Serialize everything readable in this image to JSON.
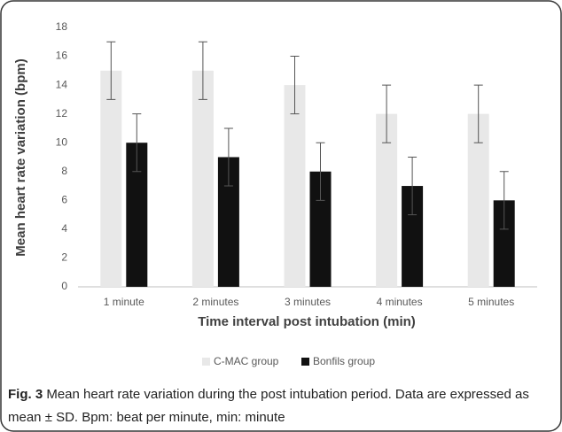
{
  "chart_data": {
    "type": "bar",
    "y_label": "Mean heart rate  variation (bpm)",
    "x_label": "Time interval post intubation (min)",
    "categories": [
      "1 minute",
      "2 minutes",
      "3 minutes",
      "4 minutes",
      "5 minutes"
    ],
    "series": [
      {
        "name": "C-MAC group",
        "color": "#e8e8e8",
        "values": [
          15,
          15,
          14,
          12,
          12
        ],
        "errors": [
          2,
          2,
          2,
          2,
          2
        ]
      },
      {
        "name": "Bonfils group",
        "color": "#111111",
        "values": [
          10,
          9,
          8,
          7,
          6
        ],
        "errors": [
          2,
          2,
          2,
          2,
          2
        ]
      }
    ],
    "ylim": [
      0,
      18
    ],
    "yticks": [
      0,
      2,
      4,
      6,
      8,
      10,
      12,
      14,
      16,
      18
    ],
    "grid": false,
    "legend": "bottom",
    "caption_label": "Fig. 3",
    "caption": "Mean heart rate variation during the post intubation period. Data are expressed as mean ± SD. Bpm: beat per minute, min: minute"
  }
}
